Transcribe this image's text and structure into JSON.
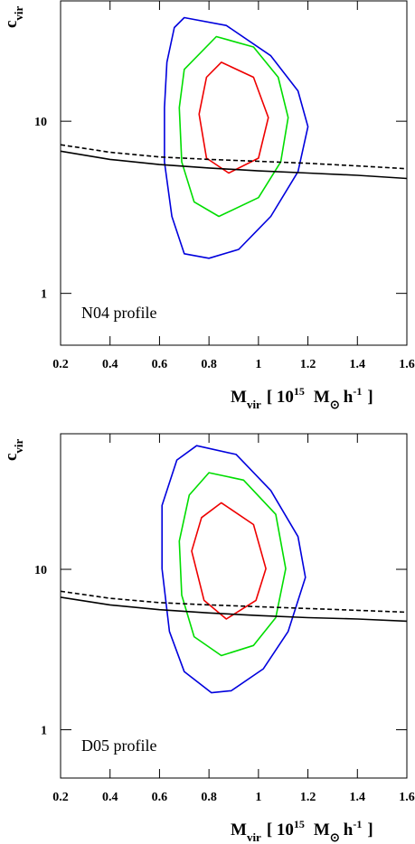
{
  "chart_data": [
    {
      "type": "line",
      "annotation": "N04 profile",
      "ylabel": [
        "c",
        "vir"
      ],
      "xlabel": [
        "M",
        "vir",
        "[ 10",
        "15",
        "M",
        "⊙",
        "h",
        "-1",
        "]"
      ],
      "xlim": [
        0.2,
        1.6
      ],
      "xticks": [
        0.2,
        0.4,
        0.6,
        0.8,
        1,
        1.2,
        1.4,
        1.6
      ],
      "ylim": [
        0.5,
        50
      ],
      "yticks": [
        1,
        10
      ],
      "log_y": true,
      "series": [
        {
          "color": "#0000dd",
          "closed": true,
          "dashed": false,
          "x": [
            0.7,
            0.87,
            1.05,
            1.16,
            1.2,
            1.16,
            1.05,
            0.92,
            0.8,
            0.7,
            0.65,
            0.62,
            0.62,
            0.63,
            0.66
          ],
          "values": [
            40,
            36,
            24,
            15,
            9.3,
            5.1,
            2.8,
            1.8,
            1.6,
            1.7,
            2.8,
            5.8,
            12,
            22,
            35
          ]
        },
        {
          "color": "#00dd00",
          "closed": true,
          "dashed": false,
          "x": [
            0.83,
            0.98,
            1.08,
            1.12,
            1.09,
            1.0,
            0.84,
            0.74,
            0.69,
            0.68,
            0.7
          ],
          "values": [
            31,
            27,
            18,
            10.5,
            5.8,
            3.6,
            2.8,
            3.4,
            5.8,
            12,
            20
          ]
        },
        {
          "color": "#ee0000",
          "closed": true,
          "dashed": false,
          "x": [
            0.85,
            0.98,
            1.04,
            1.0,
            0.88,
            0.79,
            0.76,
            0.79
          ],
          "values": [
            22,
            18,
            10.5,
            6.1,
            5.0,
            6.1,
            11,
            18
          ]
        },
        {
          "color": "#000000",
          "closed": false,
          "dashed": false,
          "x": [
            0.2,
            0.4,
            0.6,
            0.8,
            1.0,
            1.2,
            1.4,
            1.6
          ],
          "values": [
            6.7,
            6.0,
            5.6,
            5.35,
            5.15,
            5.0,
            4.85,
            4.65
          ]
        },
        {
          "color": "#000000",
          "closed": false,
          "dashed": true,
          "x": [
            0.2,
            0.4,
            0.6,
            0.8,
            1.0,
            1.2,
            1.4,
            1.6
          ],
          "values": [
            7.3,
            6.6,
            6.2,
            6.0,
            5.85,
            5.7,
            5.5,
            5.3
          ]
        }
      ]
    },
    {
      "type": "line",
      "annotation": "D05 profile",
      "ylabel": [
        "c",
        "vir"
      ],
      "xlabel": [
        "M",
        "vir",
        "[ 10",
        "15",
        "M",
        "⊙",
        "h",
        "-1",
        "]"
      ],
      "xlim": [
        0.2,
        1.6
      ],
      "xticks": [
        0.2,
        0.4,
        0.6,
        0.8,
        1,
        1.2,
        1.4,
        1.6
      ],
      "ylim": [
        0.5,
        70
      ],
      "yticks": [
        1,
        10
      ],
      "log_y": true,
      "series": [
        {
          "color": "#0000dd",
          "closed": true,
          "dashed": false,
          "x": [
            0.75,
            0.91,
            1.05,
            1.16,
            1.19,
            1.12,
            1.02,
            0.89,
            0.81,
            0.7,
            0.64,
            0.61,
            0.61,
            0.67
          ],
          "values": [
            59,
            52,
            31,
            16,
            8.9,
            4.1,
            2.4,
            1.75,
            1.7,
            2.3,
            4.1,
            10.1,
            25,
            48
          ]
        },
        {
          "color": "#00dd00",
          "closed": true,
          "dashed": false,
          "x": [
            0.8,
            0.94,
            1.07,
            1.11,
            1.07,
            0.98,
            0.85,
            0.74,
            0.69,
            0.68,
            0.72
          ],
          "values": [
            40,
            36,
            22,
            10.1,
            5.0,
            3.35,
            2.9,
            3.8,
            6.9,
            15,
            29
          ]
        },
        {
          "color": "#ee0000",
          "closed": true,
          "dashed": false,
          "x": [
            0.85,
            0.98,
            1.03,
            0.99,
            0.87,
            0.78,
            0.73,
            0.77
          ],
          "values": [
            26,
            19,
            10.1,
            6.4,
            4.9,
            6.4,
            13,
            21
          ]
        },
        {
          "color": "#000000",
          "closed": false,
          "dashed": false,
          "x": [
            0.2,
            0.4,
            0.6,
            0.8,
            1.0,
            1.2,
            1.4,
            1.6
          ],
          "values": [
            6.7,
            6.0,
            5.6,
            5.35,
            5.15,
            5.0,
            4.9,
            4.75
          ]
        },
        {
          "color": "#000000",
          "closed": false,
          "dashed": true,
          "x": [
            0.2,
            0.4,
            0.6,
            0.8,
            1.0,
            1.2,
            1.4,
            1.6
          ],
          "values": [
            7.3,
            6.6,
            6.2,
            6.0,
            5.85,
            5.7,
            5.55,
            5.4
          ]
        }
      ]
    }
  ]
}
